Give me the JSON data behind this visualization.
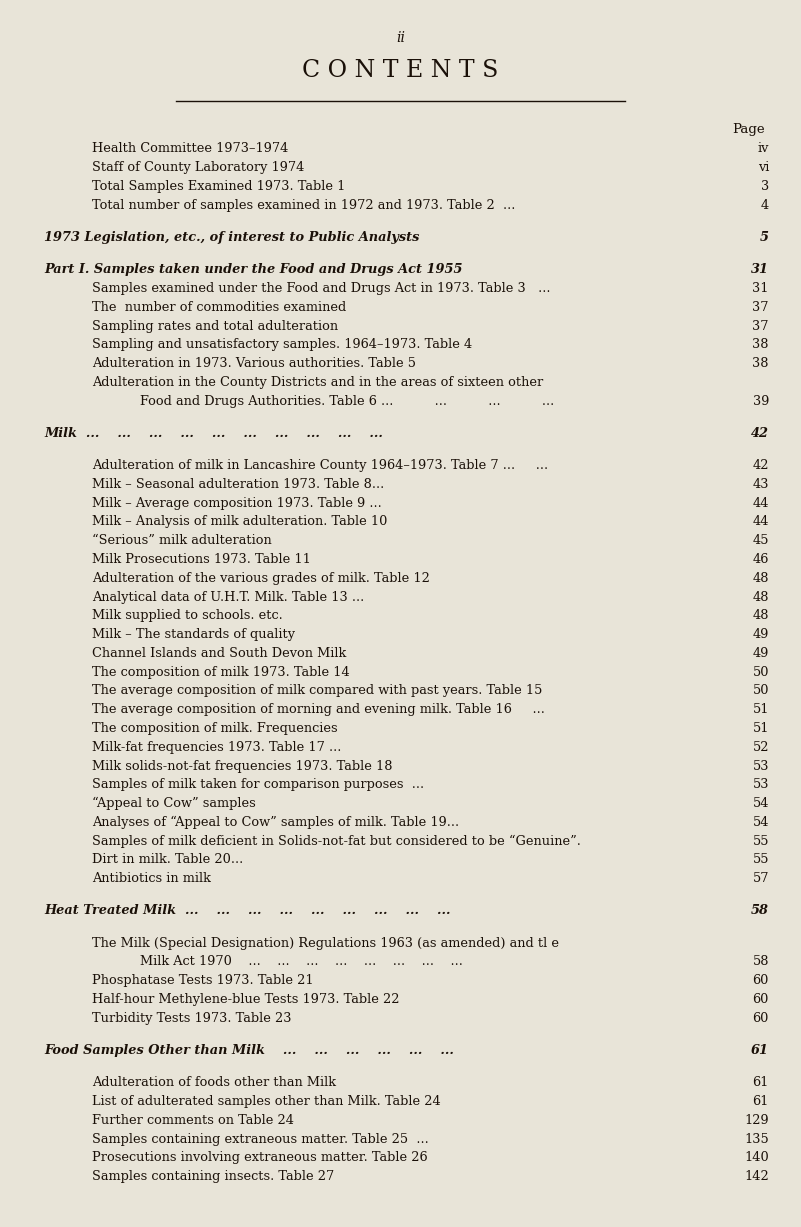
{
  "page_num": "ii",
  "title": "C O N T E N T S",
  "bg_color": "#e8e4d8",
  "text_color": "#1a1008",
  "page_label": "Page",
  "entries": [
    {
      "text": "Health Committee 1973–1974",
      "dots": true,
      "page": "iv",
      "indent": 1,
      "style": "normal"
    },
    {
      "text": "Staff of County Laboratory 1974",
      "dots": true,
      "page": "vi",
      "indent": 1,
      "style": "normal"
    },
    {
      "text": "Total Samples Examined 1973. Table 1",
      "dots": true,
      "page": "3",
      "indent": 1,
      "style": "normal"
    },
    {
      "text": "Total number of samples examined in 1972 and 1973. Table 2  ...",
      "dots": false,
      "page": "4",
      "indent": 1,
      "style": "normal"
    },
    {
      "text": "",
      "dots": false,
      "page": "",
      "indent": 0,
      "style": "spacer"
    },
    {
      "text": "1973 Legislation, etc., of interest to Public Analysts",
      "dots": true,
      "page": "5",
      "indent": 0,
      "style": "italic"
    },
    {
      "text": "",
      "dots": false,
      "page": "",
      "indent": 0,
      "style": "spacer"
    },
    {
      "text": "Part I. Samples taken under the Food and Drugs Act 1955",
      "dots": true,
      "page": "31",
      "indent": 0,
      "style": "italic"
    },
    {
      "text": "Samples examined under the Food and Drugs Act in 1973. Table 3   ...",
      "dots": false,
      "page": "31",
      "indent": 1,
      "style": "normal"
    },
    {
      "text": "The  number of commodities examined",
      "dots": true,
      "page": "37",
      "indent": 1,
      "style": "normal"
    },
    {
      "text": "Sampling rates and total adulteration",
      "dots": true,
      "page": "37",
      "indent": 1,
      "style": "normal"
    },
    {
      "text": "Sampling and unsatisfactory samples. 1964–1973. Table 4",
      "dots": true,
      "page": "38",
      "indent": 1,
      "style": "normal"
    },
    {
      "text": "Adulteration in 1973. Various authorities. Table 5",
      "dots": true,
      "page": "38",
      "indent": 1,
      "style": "normal"
    },
    {
      "text": "Adulteration in the County Districts and in the areas of sixteen other",
      "dots": false,
      "page": "",
      "indent": 1,
      "style": "normal"
    },
    {
      "text": "Food and Drugs Authorities. Table 6 ...          ...          ...          ...",
      "dots": false,
      "page": "39",
      "indent": 2,
      "style": "normal"
    },
    {
      "text": "",
      "dots": false,
      "page": "",
      "indent": 0,
      "style": "spacer"
    },
    {
      "text": "Milk  ...    ...    ...    ...    ...    ...    ...    ...    ...    ...",
      "dots": false,
      "page": "42",
      "indent": 0,
      "style": "italic"
    },
    {
      "text": "",
      "dots": false,
      "page": "",
      "indent": 0,
      "style": "spacer"
    },
    {
      "text": "Adulteration of milk in Lancashire County 1964–1973. Table 7 ...     ...",
      "dots": false,
      "page": "42",
      "indent": 1,
      "style": "normal"
    },
    {
      "text": "Milk – Seasonal adulteration 1973. Table 8...",
      "dots": true,
      "page": "43",
      "indent": 1,
      "style": "normal"
    },
    {
      "text": "Milk – Average composition 1973. Table 9 ...",
      "dots": true,
      "page": "44",
      "indent": 1,
      "style": "normal"
    },
    {
      "text": "Milk – Analysis of milk adulteration. Table 10",
      "dots": true,
      "page": "44",
      "indent": 1,
      "style": "normal"
    },
    {
      "text": "“Serious” milk adulteration",
      "dots": true,
      "page": "45",
      "indent": 1,
      "style": "normal"
    },
    {
      "text": "Milk Prosecutions 1973. Table 11",
      "dots": true,
      "page": "46",
      "indent": 1,
      "style": "normal"
    },
    {
      "text": "Adulteration of the various grades of milk. Table 12",
      "dots": true,
      "page": "48",
      "indent": 1,
      "style": "normal"
    },
    {
      "text": "Analytical data of U.H.T. Milk. Table 13 ...",
      "dots": true,
      "page": "48",
      "indent": 1,
      "style": "normal"
    },
    {
      "text": "Milk supplied to schools. etc.",
      "dots": true,
      "page": "48",
      "indent": 1,
      "style": "normal"
    },
    {
      "text": "Milk – The standards of quality",
      "dots": true,
      "page": "49",
      "indent": 1,
      "style": "normal"
    },
    {
      "text": "Channel Islands and South Devon Milk",
      "dots": true,
      "page": "49",
      "indent": 1,
      "style": "normal"
    },
    {
      "text": "The composition of milk 1973. Table 14",
      "dots": true,
      "page": "50",
      "indent": 1,
      "style": "normal"
    },
    {
      "text": "The average composition of milk compared with past years. Table 15",
      "dots": false,
      "page": "50",
      "indent": 1,
      "style": "normal"
    },
    {
      "text": "The average composition of morning and evening milk. Table 16     ...",
      "dots": false,
      "page": "51",
      "indent": 1,
      "style": "normal"
    },
    {
      "text": "The composition of milk. Frequencies",
      "dots": true,
      "page": "51",
      "indent": 1,
      "style": "normal"
    },
    {
      "text": "Milk-fat frequencies 1973. Table 17 ...",
      "dots": true,
      "page": "52",
      "indent": 1,
      "style": "normal"
    },
    {
      "text": "Milk solids-not-fat frequencies 1973. Table 18",
      "dots": true,
      "page": "53",
      "indent": 1,
      "style": "normal"
    },
    {
      "text": "Samples of milk taken for comparison purposes  ...",
      "dots": true,
      "page": "53",
      "indent": 1,
      "style": "normal"
    },
    {
      "text": "“Appeal to Cow” samples",
      "dots": true,
      "page": "54",
      "indent": 1,
      "style": "normal"
    },
    {
      "text": "Analyses of “Appeal to Cow” samples of milk. Table 19...",
      "dots": true,
      "page": "54",
      "indent": 1,
      "style": "normal"
    },
    {
      "text": "Samples of milk deficient in Solids-not-fat but considered to be “Genuine”.",
      "dots": false,
      "page": "55",
      "indent": 1,
      "style": "normal"
    },
    {
      "text": "Dirt in milk. Table 20...",
      "dots": true,
      "page": "55",
      "indent": 1,
      "style": "normal"
    },
    {
      "text": "Antibiotics in milk",
      "dots": true,
      "page": "57",
      "indent": 1,
      "style": "normal"
    },
    {
      "text": "",
      "dots": false,
      "page": "",
      "indent": 0,
      "style": "spacer"
    },
    {
      "text": "Heat Treated Milk  ...    ...    ...    ...    ...    ...    ...    ...    ...",
      "dots": false,
      "page": "58",
      "indent": 0,
      "style": "italic"
    },
    {
      "text": "",
      "dots": false,
      "page": "",
      "indent": 0,
      "style": "spacer"
    },
    {
      "text": "The Milk (Special Designation) Regulations 1963 (as amended) and tl e",
      "dots": false,
      "page": "",
      "indent": 1,
      "style": "normal"
    },
    {
      "text": "Milk Act 1970    ...    ...    ...    ...    ...    ...    ...    ...",
      "dots": false,
      "page": "58",
      "indent": 2,
      "style": "normal"
    },
    {
      "text": "Phosphatase Tests 1973. Table 21",
      "dots": true,
      "page": "60",
      "indent": 1,
      "style": "normal"
    },
    {
      "text": "Half-hour Methylene-blue Tests 1973. Table 22",
      "dots": true,
      "page": "60",
      "indent": 1,
      "style": "normal"
    },
    {
      "text": "Turbidity Tests 1973. Table 23",
      "dots": true,
      "page": "60",
      "indent": 1,
      "style": "normal"
    },
    {
      "text": "",
      "dots": false,
      "page": "",
      "indent": 0,
      "style": "spacer"
    },
    {
      "text": "Food Samples Other than Milk    ...    ...    ...    ...    ...    ...",
      "dots": false,
      "page": "61",
      "indent": 0,
      "style": "italic"
    },
    {
      "text": "",
      "dots": false,
      "page": "",
      "indent": 0,
      "style": "spacer"
    },
    {
      "text": "Adulteration of foods other than Milk",
      "dots": true,
      "page": "61",
      "indent": 1,
      "style": "normal"
    },
    {
      "text": "List of adulterated samples other than Milk. Table 24",
      "dots": true,
      "page": "61",
      "indent": 1,
      "style": "normal"
    },
    {
      "text": "Further comments on Table 24",
      "dots": true,
      "page": "129",
      "indent": 1,
      "style": "normal"
    },
    {
      "text": "Samples containing extraneous matter. Table 25  ...",
      "dots": true,
      "page": "135",
      "indent": 1,
      "style": "normal"
    },
    {
      "text": "Prosecutions involving extraneous matter. Table 26",
      "dots": true,
      "page": "140",
      "indent": 1,
      "style": "normal"
    },
    {
      "text": "Samples containing insects. Table 27",
      "dots": true,
      "page": "142",
      "indent": 1,
      "style": "normal"
    }
  ]
}
